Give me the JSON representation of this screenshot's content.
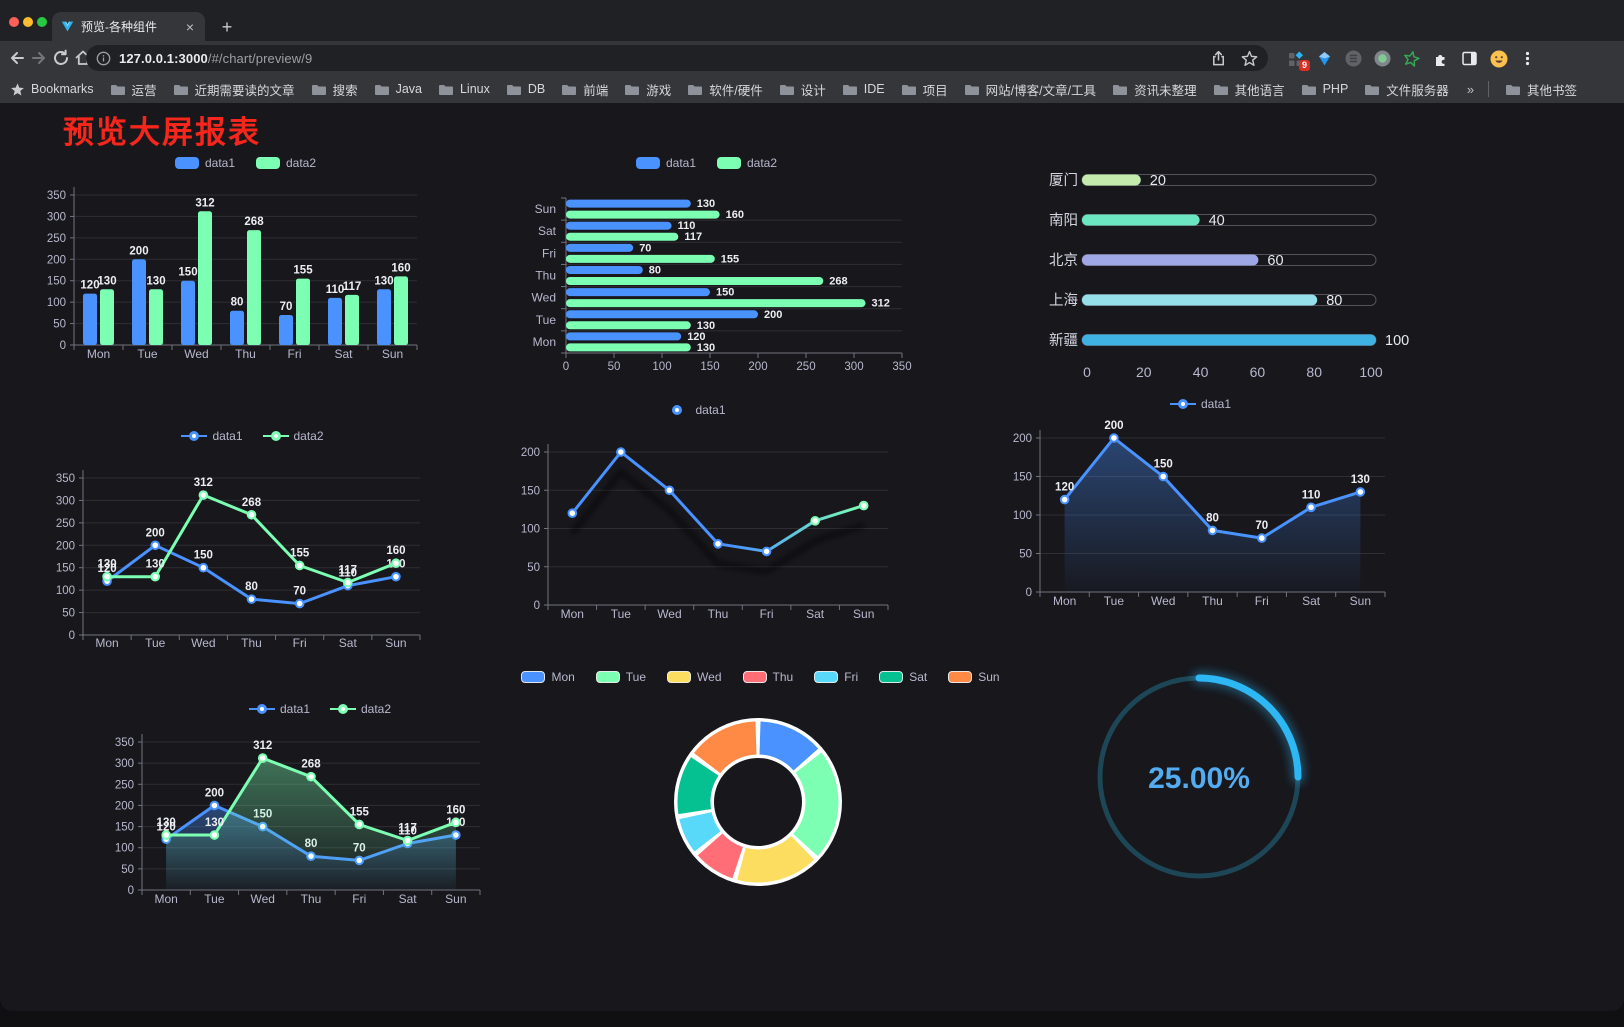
{
  "browser": {
    "tab_title": "预览-各种组件",
    "close_tab": "×",
    "new_tab": "+",
    "url_host": "127.0.0.1:3000",
    "url_path": "/#/chart/preview/9",
    "extension_badge": "9",
    "bookmarks_bar": {
      "star_item": "Bookmarks",
      "folders": [
        "运营",
        "近期需要读的文章",
        "搜索",
        "Java",
        "Linux",
        "DB",
        "前端",
        "游戏",
        "软件/硬件",
        "设计",
        "IDE",
        "项目",
        "网站/博客/文章/工具",
        "资讯未整理",
        "其他语言",
        "PHP",
        "文件服务器"
      ],
      "overflow": "»",
      "other_bookmarks": "其他书签"
    }
  },
  "page": {
    "title": "预览大屏报表",
    "title_color": "#f5261b"
  },
  "palette": {
    "axis_text": "#B9B8CE",
    "data1": "#4992ff",
    "data2": "#7cffb2"
  },
  "chart_data": [
    {
      "id": "bar-grouped",
      "type": "bar",
      "title": "",
      "categories": [
        "Mon",
        "Tue",
        "Wed",
        "Thu",
        "Fri",
        "Sat",
        "Sun"
      ],
      "series": [
        {
          "name": "data1",
          "color": "#4992ff",
          "values": [
            120,
            200,
            150,
            80,
            70,
            110,
            130
          ]
        },
        {
          "name": "data2",
          "color": "#7cffb2",
          "values": [
            130,
            130,
            312,
            268,
            155,
            117,
            160
          ]
        }
      ],
      "ylim": [
        0,
        350
      ],
      "ytick": 50,
      "grid": true,
      "legend_position": "top"
    },
    {
      "id": "bar-horizontal",
      "type": "bar",
      "orientation": "horizontal",
      "categories": [
        "Mon",
        "Tue",
        "Wed",
        "Thu",
        "Fri",
        "Sat",
        "Sun"
      ],
      "category_display_order": "Sun-at-top",
      "series": [
        {
          "name": "data1",
          "color": "#4992ff",
          "values": [
            120,
            200,
            150,
            80,
            70,
            110,
            130
          ]
        },
        {
          "name": "data2",
          "color": "#7cffb2",
          "values": [
            130,
            130,
            312,
            268,
            155,
            117,
            160
          ]
        }
      ],
      "xlim": [
        0,
        350
      ],
      "xtick": 50,
      "legend_position": "top"
    },
    {
      "id": "progress-bars",
      "type": "bar",
      "orientation": "horizontal",
      "categories": [
        "厦门",
        "南阳",
        "北京",
        "上海",
        "新疆"
      ],
      "values": [
        20,
        40,
        60,
        80,
        100
      ],
      "colors": [
        "#c4ebad",
        "#6be6c1",
        "#a0a7e6",
        "#96dee8",
        "#3fb1e3"
      ],
      "xlim": [
        0,
        100
      ],
      "xtick": 20
    },
    {
      "id": "line-basic",
      "type": "line",
      "categories": [
        "Mon",
        "Tue",
        "Wed",
        "Thu",
        "Fri",
        "Sat",
        "Sun"
      ],
      "series": [
        {
          "name": "data1",
          "color": "#4992ff",
          "values": [
            120,
            200,
            150,
            80,
            70,
            110,
            130
          ]
        },
        {
          "name": "data2",
          "color": "#7cffb2",
          "values": [
            130,
            130,
            312,
            268,
            155,
            117,
            160
          ]
        }
      ],
      "ylim": [
        0,
        350
      ],
      "ytick": 50,
      "data_labels": true,
      "legend_position": "top"
    },
    {
      "id": "line-gradient",
      "type": "line",
      "categories": [
        "Mon",
        "Tue",
        "Wed",
        "Thu",
        "Fri",
        "Sat",
        "Sun"
      ],
      "series": [
        {
          "name": "data1",
          "color": "#4992ff",
          "color2": "#7cffb2",
          "values": [
            120,
            200,
            150,
            80,
            70,
            110,
            130
          ]
        }
      ],
      "ylim": [
        0,
        200
      ],
      "ytick": 50,
      "data_labels": false,
      "legend_position": "top"
    },
    {
      "id": "line-area",
      "type": "area",
      "categories": [
        "Mon",
        "Tue",
        "Wed",
        "Thu",
        "Fri",
        "Sat",
        "Sun"
      ],
      "series": [
        {
          "name": "data1",
          "color": "#4992ff",
          "values": [
            120,
            200,
            150,
            80,
            70,
            110,
            130
          ]
        }
      ],
      "ylim": [
        0,
        200
      ],
      "ytick": 50,
      "data_labels": true,
      "legend_position": "top"
    },
    {
      "id": "line-area-multi",
      "type": "area",
      "categories": [
        "Mon",
        "Tue",
        "Wed",
        "Thu",
        "Fri",
        "Sat",
        "Sun"
      ],
      "series": [
        {
          "name": "data1",
          "color": "#4992ff",
          "values": [
            120,
            200,
            150,
            80,
            70,
            110,
            130
          ]
        },
        {
          "name": "data2",
          "color": "#7cffb2",
          "values": [
            130,
            130,
            312,
            268,
            155,
            117,
            160
          ]
        }
      ],
      "ylim": [
        0,
        350
      ],
      "ytick": 50,
      "data_labels": true,
      "legend_position": "top"
    },
    {
      "id": "donut",
      "type": "pie",
      "labels": [
        "Mon",
        "Tue",
        "Wed",
        "Thu",
        "Fri",
        "Sat",
        "Sun"
      ],
      "values": [
        120,
        200,
        150,
        80,
        70,
        110,
        130
      ],
      "colors": [
        "#4992ff",
        "#7cffb2",
        "#fddd60",
        "#ff6e76",
        "#58d9f9",
        "#05c091",
        "#ff8a45"
      ],
      "inner_radius": "55%",
      "border_color": "#ffffff",
      "legend_position": "top"
    },
    {
      "id": "gauge",
      "type": "gauge",
      "value": 25,
      "label": "25.00%",
      "color": "#2db7f5",
      "track_color": "#1d4757",
      "text_color": "#53acf2"
    }
  ]
}
